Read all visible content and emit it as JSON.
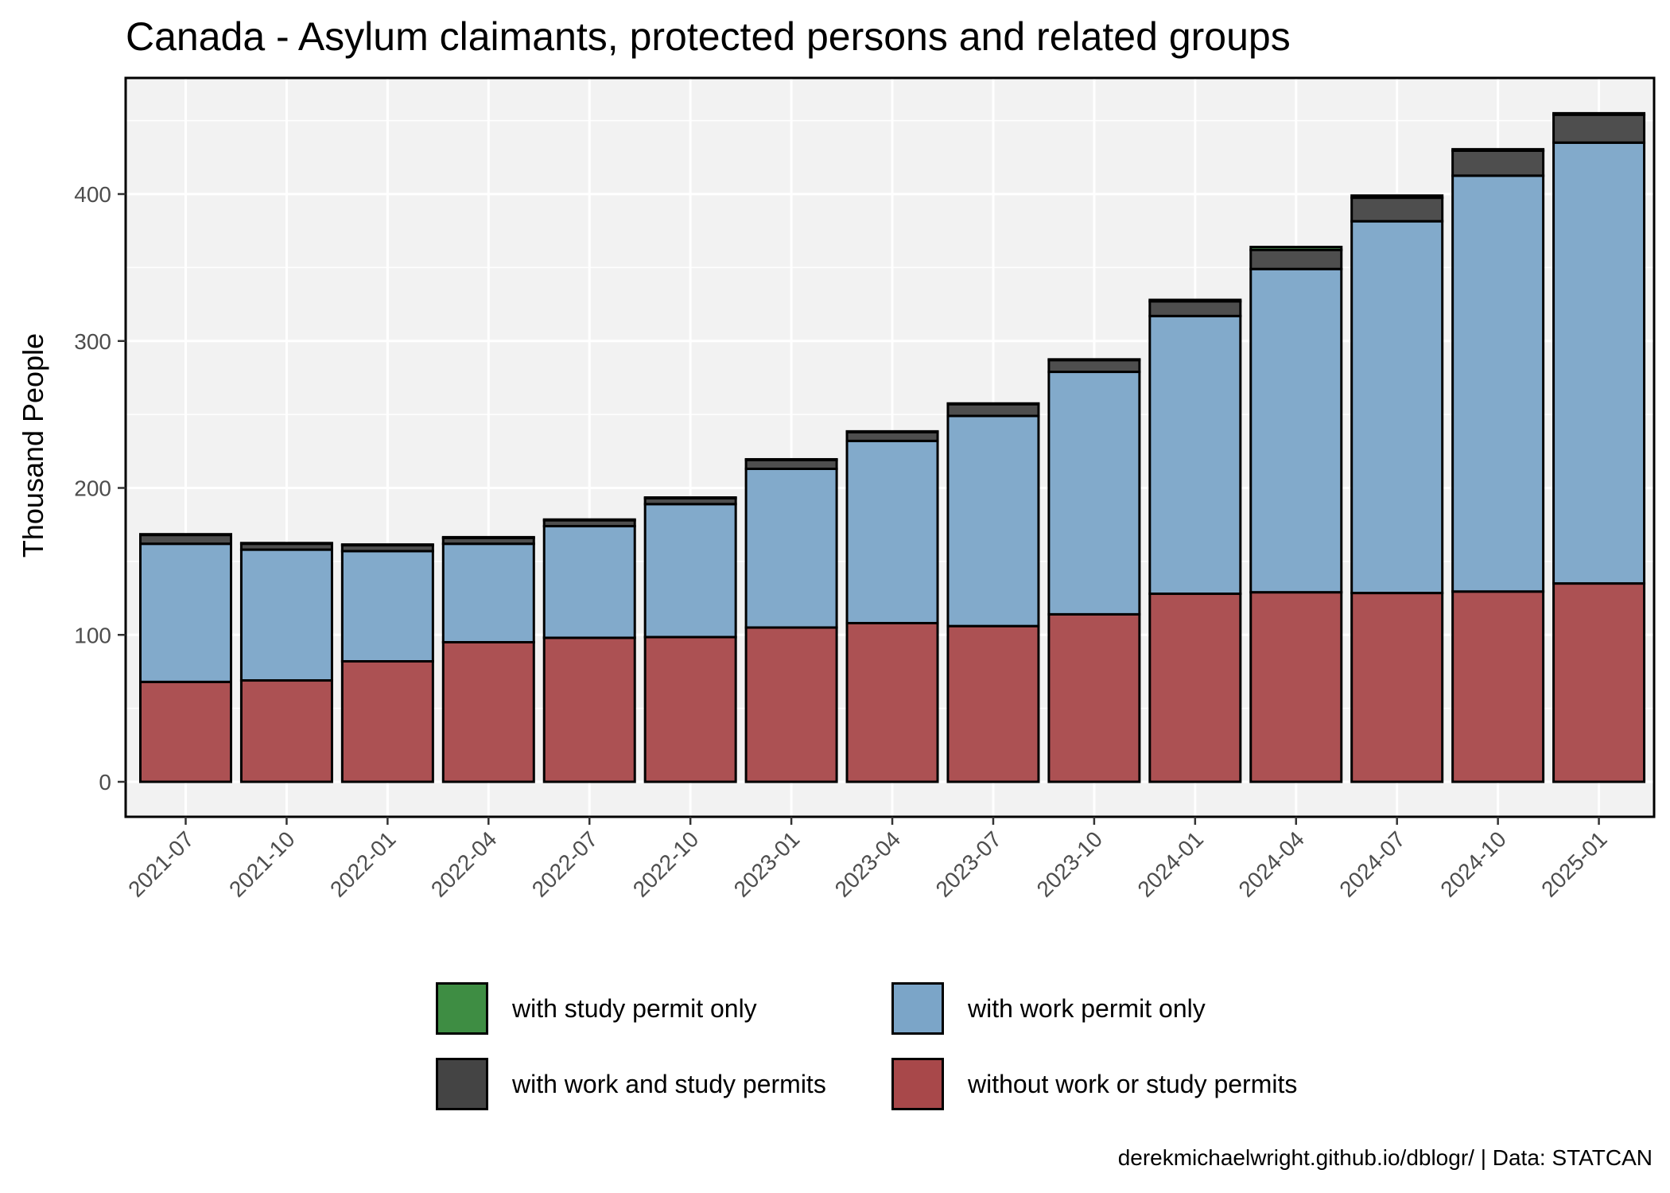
{
  "chart_data": {
    "type": "bar",
    "stacked": true,
    "title": "Canada - Asylum claimants, protected persons and related groups",
    "ylabel": "Thousand People",
    "xlabel": "",
    "ylim": [
      0,
      470
    ],
    "yticks": [
      0,
      100,
      200,
      300,
      400
    ],
    "grid": true,
    "legend_position": "bottom",
    "categories": [
      "2021-07",
      "2021-10",
      "2022-01",
      "2022-04",
      "2022-07",
      "2022-10",
      "2023-01",
      "2023-04",
      "2023-07",
      "2023-10",
      "2024-01",
      "2024-04",
      "2024-07",
      "2024-10",
      "2025-01"
    ],
    "series": [
      {
        "name": "without work or study permits",
        "color": "#A8484A",
        "values": [
          68,
          69,
          82,
          95,
          98,
          98.5,
          105,
          108,
          106,
          114,
          128,
          129,
          128.5,
          129.5,
          135
        ]
      },
      {
        "name": "with work permit only",
        "color": "#7BA5C8",
        "values": [
          94,
          89,
          75,
          67,
          76,
          90.5,
          108,
          124,
          143,
          165,
          189,
          220,
          253,
          283,
          300
        ]
      },
      {
        "name": "with work and study permits",
        "color": "#444444",
        "values": [
          6,
          4,
          4,
          4,
          4,
          4,
          6,
          6,
          8,
          8,
          10,
          13,
          16,
          17,
          19
        ]
      },
      {
        "name": "with study permit only",
        "color": "#3E8D43",
        "values": [
          0.5,
          0.5,
          0.5,
          0.5,
          0.5,
          0.5,
          0.5,
          0.5,
          0.5,
          0.5,
          1,
          2,
          1.5,
          1,
          1
        ]
      }
    ]
  },
  "legend": [
    {
      "label": "with study permit only",
      "color": "#3E8D43"
    },
    {
      "label": "with work permit only",
      "color": "#7BA5C8"
    },
    {
      "label": "with work and study permits",
      "color": "#444444"
    },
    {
      "label": "without work or study permits",
      "color": "#A8484A"
    }
  ],
  "caption": "derekmichaelwright.github.io/dblogr/ | Data: STATCAN"
}
